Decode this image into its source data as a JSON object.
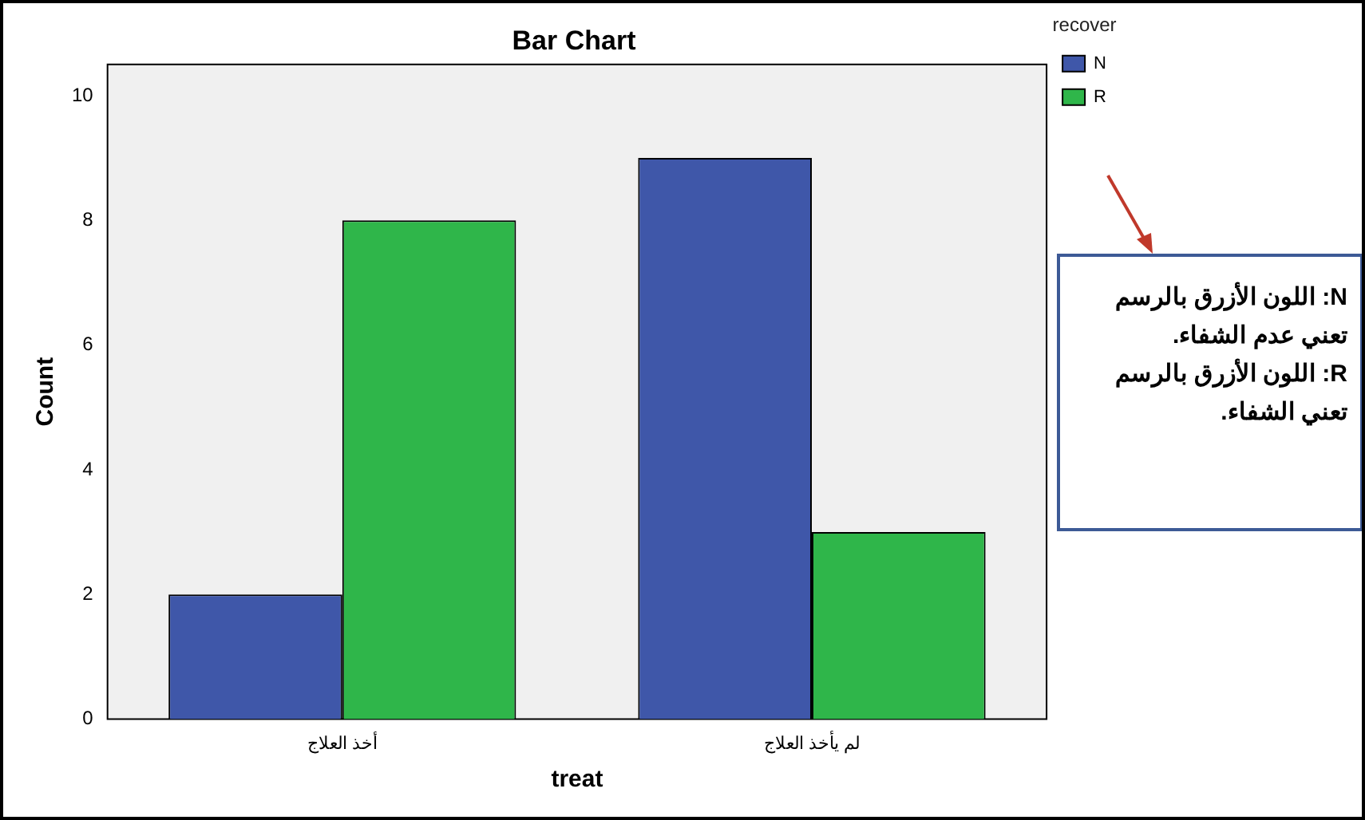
{
  "chart_data": {
    "type": "bar",
    "title": "Bar Chart",
    "xlabel": "treat",
    "ylabel": "Count",
    "legend_title": "recover",
    "categories": [
      "أخذ العلاج",
      "لم يأخذ العلاج"
    ],
    "series": [
      {
        "name": "N",
        "color": "#3f57a9",
        "values": [
          2,
          9
        ]
      },
      {
        "name": "R",
        "color": "#2fb64a",
        "values": [
          8,
          3
        ]
      }
    ],
    "ylim": [
      0,
      10.5
    ],
    "yticks": [
      0,
      2,
      4,
      6,
      8,
      10
    ],
    "grid": false,
    "legend": "top right",
    "annotations": [
      "N: اللون الأزرق بالرسم تعني عدم الشفاء.",
      "R: اللون الأزرق بالرسم تعني الشفاء."
    ]
  }
}
